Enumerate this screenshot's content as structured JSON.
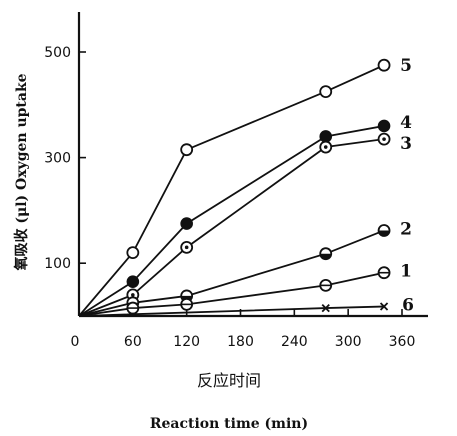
{
  "chart_data": {
    "type": "line",
    "xlabel_cn": "反应时间",
    "xlabel": "Reaction time (min)",
    "ylabel": "氧吸收 (μl) Oxygen uptake",
    "xlim": [
      0,
      390
    ],
    "ylim": [
      0,
      560
    ],
    "xticks": [
      0,
      60,
      120,
      180,
      240,
      300,
      360
    ],
    "yticks": [
      100,
      300,
      500
    ],
    "grid": false,
    "series": [
      {
        "name": "5",
        "marker": "open-circle",
        "x": [
          0,
          60,
          120,
          275,
          340
        ],
        "values": [
          0,
          120,
          315,
          425,
          475
        ]
      },
      {
        "name": "4",
        "marker": "filled-circle",
        "x": [
          0,
          60,
          120,
          275,
          340
        ],
        "values": [
          0,
          65,
          175,
          340,
          360
        ]
      },
      {
        "name": "3",
        "marker": "dotted-circle",
        "x": [
          0,
          60,
          120,
          275,
          340
        ],
        "values": [
          0,
          40,
          130,
          320,
          335
        ]
      },
      {
        "name": "2",
        "marker": "half-circle",
        "x": [
          0,
          60,
          120,
          275,
          340
        ],
        "values": [
          0,
          25,
          38,
          118,
          162
        ]
      },
      {
        "name": "1",
        "marker": "barred-circle",
        "x": [
          0,
          60,
          120,
          275,
          340
        ],
        "values": [
          0,
          15,
          22,
          58,
          82
        ]
      },
      {
        "name": "6",
        "marker": "cross",
        "x": [
          0,
          275,
          340
        ],
        "values": [
          0,
          15,
          18
        ]
      }
    ]
  }
}
